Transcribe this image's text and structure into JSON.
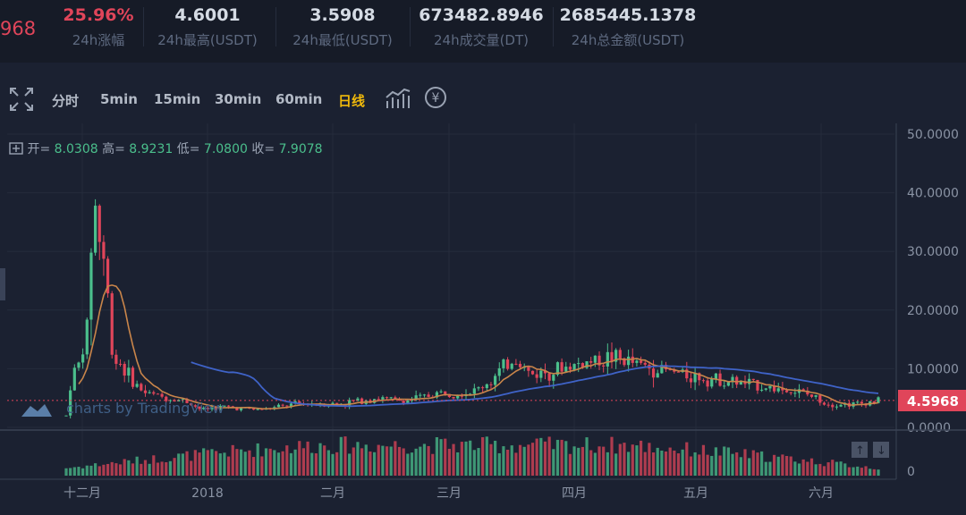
{
  "stats": {
    "price_partial": "968",
    "change": {
      "value": "25.96%",
      "label": "24h涨幅"
    },
    "high": {
      "value": "4.6001",
      "label": "24h最高(USDT)"
    },
    "low": {
      "value": "3.5908",
      "label": "24h最低(USDT)"
    },
    "volume": {
      "value": "673482.8946",
      "label": "24h成交量(DT)"
    },
    "turnover": {
      "value": "2685445.1378",
      "label": "24h总金额(USDT)"
    }
  },
  "toolbar": {
    "items": [
      "分时",
      "5min",
      "15min",
      "30min",
      "60min",
      "日线"
    ],
    "active": "日线"
  },
  "ohlc": {
    "open_label": "开=",
    "open": "8.0308",
    "high_label": "高=",
    "high": "8.9231",
    "low_label": "低=",
    "low": "7.0800",
    "close_label": "收=",
    "close": "7.9078"
  },
  "watermark": "charts by TradingView",
  "current_price_label": "4.5968",
  "colors": {
    "up": "#4bbf8c",
    "down": "#e0455a",
    "ma_short": "#c9854a",
    "ma_long": "#3f63c8",
    "active": "#f0b90b"
  },
  "chart_data": {
    "type": "candlestick",
    "price_axis": {
      "ticks": [
        "50.0000",
        "40.0000",
        "30.0000",
        "20.0000",
        "10.0000",
        "0.0000"
      ],
      "ylim": [
        0,
        50
      ]
    },
    "volume_axis": {
      "ticks": [
        "0"
      ]
    },
    "x_tick_labels": [
      "十二月",
      "2018",
      "二月",
      "三月",
      "四月",
      "五月",
      "六月"
    ],
    "current_price": 4.5968
  }
}
